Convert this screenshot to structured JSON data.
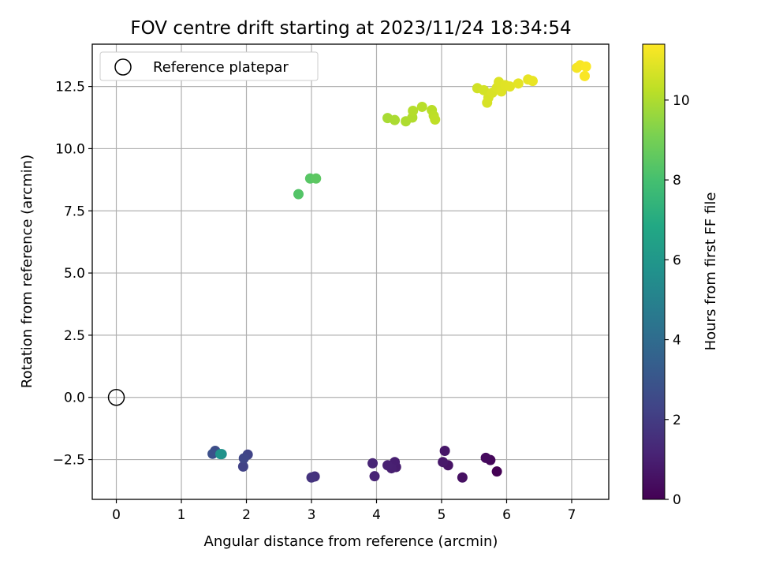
{
  "chart_data": {
    "type": "scatter",
    "title": "FOV centre drift starting at 2023/11/24 18:34:54",
    "xlabel": "Angular distance from reference (arcmin)",
    "ylabel": "Rotation from reference (arcmin)",
    "xlim": [
      -0.37,
      7.57
    ],
    "ylim": [
      -4.1,
      14.2
    ],
    "x_ticks": [
      0,
      1,
      2,
      3,
      4,
      5,
      6,
      7
    ],
    "x_tick_labels": [
      "0",
      "1",
      "2",
      "3",
      "4",
      "5",
      "6",
      "7"
    ],
    "y_ticks": [
      -2.5,
      0.0,
      2.5,
      5.0,
      7.5,
      10.0,
      12.5
    ],
    "y_tick_labels": [
      "−2.5",
      "0.0",
      "2.5",
      "5.0",
      "7.5",
      "10.0",
      "12.5"
    ],
    "grid": true,
    "legend": {
      "position": "top-left",
      "entries": [
        "Reference platepar"
      ]
    },
    "reference_point": {
      "x": 0.0,
      "y": 0.0
    },
    "colorbar": {
      "label": "Hours from first FF file",
      "range": [
        0,
        11.4
      ],
      "ticks": [
        0,
        2,
        4,
        6,
        8,
        10
      ],
      "tick_labels": [
        "0",
        "2",
        "4",
        "6",
        "8",
        "10"
      ],
      "colormap": "viridis"
    },
    "points": [
      {
        "x": 5.85,
        "y": -2.98,
        "h": 0.0
      },
      {
        "x": 5.75,
        "y": -2.52,
        "h": 0.2
      },
      {
        "x": 5.68,
        "y": -2.43,
        "h": 0.3
      },
      {
        "x": 5.32,
        "y": -3.22,
        "h": 0.5
      },
      {
        "x": 5.1,
        "y": -2.73,
        "h": 0.6
      },
      {
        "x": 5.05,
        "y": -2.15,
        "h": 0.7
      },
      {
        "x": 5.02,
        "y": -2.6,
        "h": 0.75
      },
      {
        "x": 4.3,
        "y": -2.8,
        "h": 0.9
      },
      {
        "x": 4.28,
        "y": -2.6,
        "h": 0.95
      },
      {
        "x": 4.23,
        "y": -2.85,
        "h": 1.0
      },
      {
        "x": 4.17,
        "y": -2.73,
        "h": 1.05
      },
      {
        "x": 3.97,
        "y": -3.17,
        "h": 1.15
      },
      {
        "x": 3.94,
        "y": -2.65,
        "h": 1.2
      },
      {
        "x": 3.05,
        "y": -3.18,
        "h": 1.6
      },
      {
        "x": 3.0,
        "y": -3.22,
        "h": 1.7
      },
      {
        "x": 1.95,
        "y": -2.78,
        "h": 2.2
      },
      {
        "x": 2.02,
        "y": -2.3,
        "h": 2.3
      },
      {
        "x": 1.96,
        "y": -2.45,
        "h": 2.4
      },
      {
        "x": 1.52,
        "y": -2.15,
        "h": 2.7
      },
      {
        "x": 1.48,
        "y": -2.27,
        "h": 2.8
      },
      {
        "x": 1.62,
        "y": -2.28,
        "h": 5.5
      },
      {
        "x": 1.6,
        "y": -2.28,
        "h": 5.8
      },
      {
        "x": 2.8,
        "y": 8.17,
        "h": 8.3
      },
      {
        "x": 2.98,
        "y": 8.8,
        "h": 8.4
      },
      {
        "x": 3.07,
        "y": 8.8,
        "h": 8.5
      },
      {
        "x": 4.17,
        "y": 11.23,
        "h": 9.9
      },
      {
        "x": 4.28,
        "y": 11.15,
        "h": 9.95
      },
      {
        "x": 4.45,
        "y": 11.1,
        "h": 10.0
      },
      {
        "x": 4.55,
        "y": 11.25,
        "h": 10.05
      },
      {
        "x": 4.56,
        "y": 11.52,
        "h": 10.1
      },
      {
        "x": 4.7,
        "y": 11.68,
        "h": 10.15
      },
      {
        "x": 4.85,
        "y": 11.55,
        "h": 10.2
      },
      {
        "x": 4.88,
        "y": 11.32,
        "h": 10.25
      },
      {
        "x": 4.9,
        "y": 11.17,
        "h": 10.3
      },
      {
        "x": 5.55,
        "y": 12.43,
        "h": 10.6
      },
      {
        "x": 5.65,
        "y": 12.35,
        "h": 10.65
      },
      {
        "x": 5.72,
        "y": 12.05,
        "h": 10.7
      },
      {
        "x": 5.7,
        "y": 11.85,
        "h": 10.72
      },
      {
        "x": 5.78,
        "y": 12.25,
        "h": 10.75
      },
      {
        "x": 5.85,
        "y": 12.45,
        "h": 10.8
      },
      {
        "x": 5.88,
        "y": 12.68,
        "h": 10.82
      },
      {
        "x": 5.92,
        "y": 12.3,
        "h": 10.85
      },
      {
        "x": 5.98,
        "y": 12.55,
        "h": 10.88
      },
      {
        "x": 6.05,
        "y": 12.5,
        "h": 10.9
      },
      {
        "x": 6.18,
        "y": 12.62,
        "h": 10.95
      },
      {
        "x": 6.33,
        "y": 12.78,
        "h": 11.0
      },
      {
        "x": 6.4,
        "y": 12.72,
        "h": 11.05
      },
      {
        "x": 7.08,
        "y": 13.25,
        "h": 11.25
      },
      {
        "x": 7.13,
        "y": 13.35,
        "h": 11.3
      },
      {
        "x": 7.2,
        "y": 12.92,
        "h": 11.32
      },
      {
        "x": 7.22,
        "y": 13.3,
        "h": 11.35
      }
    ]
  }
}
